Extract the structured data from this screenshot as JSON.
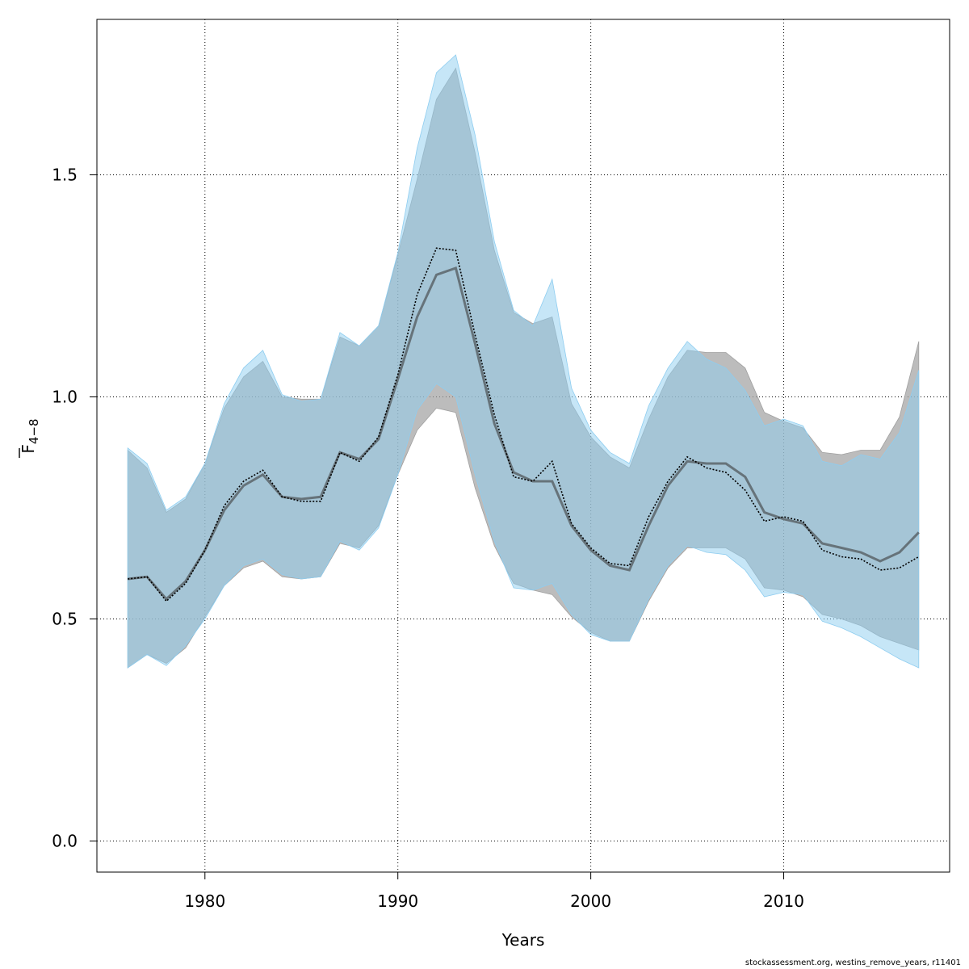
{
  "chart_data": {
    "type": "area",
    "xlabel": "Years",
    "ylabel_main": "F",
    "ylabel_sub": "4−8",
    "xlim": [
      1974.4,
      2018.6
    ],
    "ylim": [
      -0.07,
      1.85
    ],
    "x_ticks": [
      1980,
      1990,
      2000,
      2010
    ],
    "x_tick_labels": [
      "1980",
      "1990",
      "2000",
      "2010"
    ],
    "y_ticks": [
      0.0,
      0.5,
      1.0,
      1.5
    ],
    "y_tick_labels": [
      "0.0",
      "0.5",
      "1.0",
      "1.5"
    ],
    "grid": true,
    "x": [
      1976,
      1977,
      1978,
      1979,
      1980,
      1981,
      1982,
      1983,
      1984,
      1985,
      1986,
      1987,
      1988,
      1989,
      1990,
      1991,
      1992,
      1993,
      1994,
      1995,
      1996,
      1997,
      1998,
      1999,
      2000,
      2001,
      2002,
      2003,
      2004,
      2005,
      2006,
      2007,
      2008,
      2009,
      2010,
      2011,
      2012,
      2013,
      2014,
      2015,
      2016,
      2017
    ],
    "series": [
      {
        "style": "grey band, solid line",
        "color": "#000000",
        "band_color": "#a0a0a0",
        "estimate": [
          0.59,
          0.595,
          0.545,
          0.585,
          0.655,
          0.745,
          0.8,
          0.825,
          0.775,
          0.77,
          0.775,
          0.875,
          0.86,
          0.905,
          1.04,
          1.18,
          1.275,
          1.29,
          1.12,
          0.94,
          0.83,
          0.81,
          0.81,
          0.71,
          0.655,
          0.62,
          0.61,
          0.71,
          0.8,
          0.855,
          0.85,
          0.85,
          0.82,
          0.74,
          0.725,
          0.715,
          0.67,
          0.66,
          0.65,
          0.63,
          0.65,
          0.695
        ],
        "lower": [
          0.39,
          0.42,
          0.4,
          0.435,
          0.505,
          0.575,
          0.615,
          0.63,
          0.595,
          0.59,
          0.595,
          0.67,
          0.66,
          0.71,
          0.825,
          0.925,
          0.975,
          0.965,
          0.795,
          0.665,
          0.58,
          0.565,
          0.555,
          0.505,
          0.47,
          0.45,
          0.45,
          0.54,
          0.615,
          0.66,
          0.66,
          0.66,
          0.635,
          0.57,
          0.565,
          0.55,
          0.51,
          0.5,
          0.485,
          0.46,
          0.445,
          0.43
        ],
        "upper": [
          0.88,
          0.84,
          0.74,
          0.77,
          0.85,
          0.975,
          1.045,
          1.08,
          1.0,
          0.995,
          0.995,
          1.135,
          1.115,
          1.16,
          1.32,
          1.49,
          1.67,
          1.74,
          1.55,
          1.33,
          1.19,
          1.165,
          1.18,
          0.985,
          0.91,
          0.865,
          0.84,
          0.95,
          1.045,
          1.105,
          1.1,
          1.1,
          1.065,
          0.965,
          0.945,
          0.93,
          0.875,
          0.87,
          0.88,
          0.88,
          0.955,
          1.125
        ]
      },
      {
        "style": "blue band, dotted line",
        "color": "#000000",
        "band_color": "#8ecdf0",
        "estimate": [
          0.59,
          0.595,
          0.54,
          0.58,
          0.655,
          0.755,
          0.81,
          0.835,
          0.775,
          0.765,
          0.765,
          0.875,
          0.855,
          0.91,
          1.05,
          1.23,
          1.335,
          1.33,
          1.14,
          0.96,
          0.82,
          0.81,
          0.855,
          0.715,
          0.66,
          0.625,
          0.62,
          0.73,
          0.81,
          0.865,
          0.84,
          0.83,
          0.79,
          0.72,
          0.73,
          0.72,
          0.655,
          0.64,
          0.635,
          0.61,
          0.615,
          0.64
        ],
        "lower": [
          0.39,
          0.42,
          0.395,
          0.44,
          0.5,
          0.575,
          0.62,
          0.635,
          0.6,
          0.59,
          0.595,
          0.675,
          0.655,
          0.705,
          0.825,
          0.97,
          1.03,
          1.0,
          0.825,
          0.675,
          0.57,
          0.565,
          0.58,
          0.51,
          0.465,
          0.45,
          0.45,
          0.545,
          0.62,
          0.665,
          0.65,
          0.645,
          0.61,
          0.55,
          0.56,
          0.555,
          0.495,
          0.48,
          0.46,
          0.435,
          0.41,
          0.39
        ],
        "upper": [
          0.885,
          0.85,
          0.745,
          0.775,
          0.85,
          0.985,
          1.065,
          1.105,
          1.005,
          0.99,
          0.995,
          1.145,
          1.115,
          1.16,
          1.325,
          1.56,
          1.73,
          1.77,
          1.59,
          1.35,
          1.195,
          1.16,
          1.265,
          1.02,
          0.925,
          0.875,
          0.85,
          0.98,
          1.065,
          1.125,
          1.085,
          1.065,
          1.015,
          0.935,
          0.95,
          0.935,
          0.855,
          0.845,
          0.87,
          0.86,
          0.92,
          1.06
        ]
      }
    ]
  },
  "footer": {
    "text": "stockassessment.org, westins_remove_years, r11401"
  }
}
